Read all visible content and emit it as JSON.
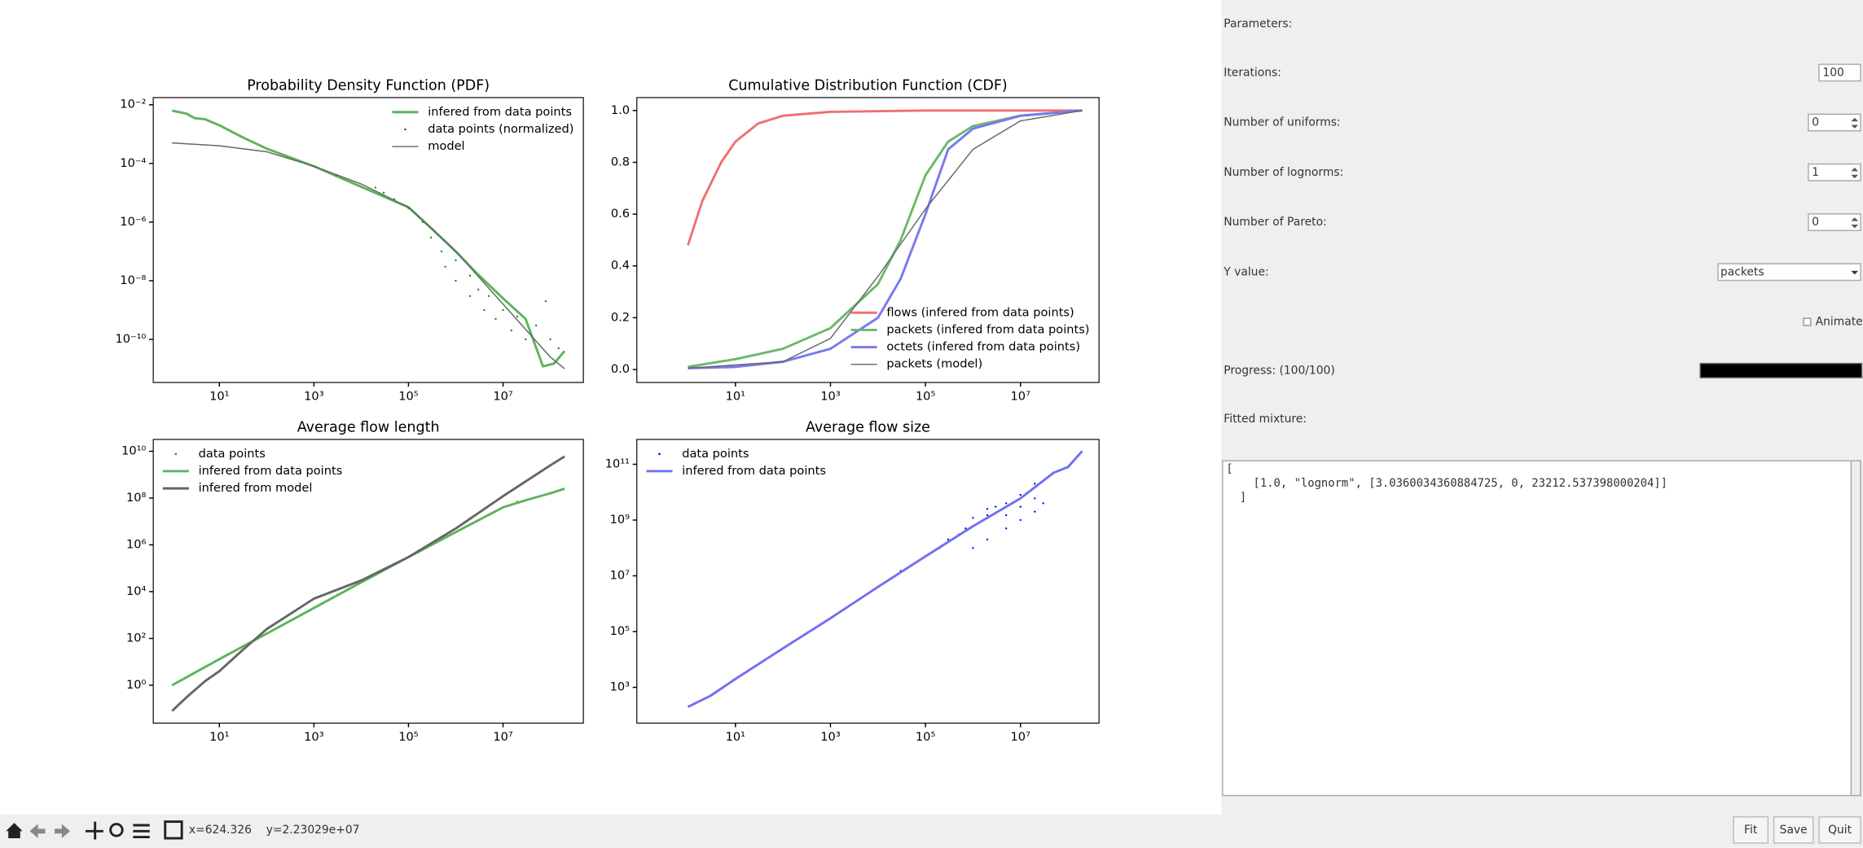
{
  "chart_data": [
    {
      "type": "line",
      "title": "Probability Density Function (PDF)",
      "xscale": "log",
      "yscale": "log",
      "xlim": [
        0.4,
        500000000
      ],
      "ylim": [
        3.4e-12,
        0.0176
      ],
      "xticks": [
        {
          "value": 10,
          "label": "10¹"
        },
        {
          "value": 1000,
          "label": "10³"
        },
        {
          "value": 100000,
          "label": "10⁵"
        },
        {
          "value": 10000000,
          "label": "10⁷"
        }
      ],
      "yticks": [
        {
          "value": 1e-10,
          "label": "10⁻¹⁰"
        },
        {
          "value": 1e-08,
          "label": "10⁻⁸"
        },
        {
          "value": 1e-06,
          "label": "10⁻⁶"
        },
        {
          "value": 0.0001,
          "label": "10⁻⁴"
        },
        {
          "value": 0.01,
          "label": "10⁻²"
        }
      ],
      "legend": "upper right",
      "series": [
        {
          "name": "infered from data points",
          "type": "line",
          "color": "#5cb45c",
          "linewidth": 2,
          "x": [
            1,
            2,
            3,
            5,
            10,
            30,
            100,
            1000,
            10000,
            100000,
            300000,
            1000000,
            3000000,
            10000000,
            30000000,
            70000000,
            120000000,
            200000000
          ],
          "values": [
            0.0063,
            0.005,
            0.0035,
            0.0032,
            0.002,
            0.0008,
            0.00032,
            8e-05,
            1.6e-05,
            3.2e-06,
            6.3e-07,
            1e-07,
            1.6e-08,
            2.5e-09,
            5e-10,
            1.2e-11,
            1.5e-11,
            4e-11
          ]
        },
        {
          "name": "data points (normalized)",
          "type": "scatter",
          "color": "#1a7a1a",
          "x": [
            1000,
            3000,
            20000,
            30000,
            50000,
            100000,
            200000,
            300000,
            500000,
            600000,
            1000000,
            1000000,
            2000000,
            2000000,
            3000000,
            4000000,
            5000000,
            7000000,
            10000000,
            15000000,
            20000000,
            30000000,
            50000000,
            80000000,
            100000000,
            150000000
          ],
          "values": [
            8e-05,
            4e-05,
            1.5e-05,
            1e-05,
            6e-06,
            3e-06,
            1e-06,
            3e-07,
            1e-07,
            3e-08,
            1e-08,
            5e-08,
            3e-09,
            1.5e-08,
            5e-09,
            1e-09,
            3e-09,
            5e-10,
            1e-09,
            2e-10,
            6e-10,
            1e-10,
            3e-10,
            2e-09,
            1e-10,
            5e-11
          ]
        },
        {
          "name": "model",
          "type": "line",
          "color": "#666666",
          "linewidth": 1,
          "x": [
            1,
            10,
            100,
            1000,
            10000,
            100000,
            1000000,
            10000000,
            100000000,
            200000000
          ],
          "values": [
            0.0005,
            0.0004,
            0.00025,
            8e-05,
            2e-05,
            3.2e-06,
            1e-07,
            1.6e-09,
            2.5e-11,
            1e-11
          ]
        }
      ]
    },
    {
      "type": "line",
      "title": "Cumulative Distribution Function (CDF)",
      "xscale": "log",
      "yscale": "linear",
      "xlim": [
        0.084,
        450000000
      ],
      "ylim": [
        -0.05,
        1.05
      ],
      "xticks": [
        {
          "value": 10,
          "label": "10¹"
        },
        {
          "value": 1000,
          "label": "10³"
        },
        {
          "value": 100000,
          "label": "10⁵"
        },
        {
          "value": 10000000,
          "label": "10⁷"
        }
      ],
      "yticks": [
        {
          "value": 0,
          "label": "0.0"
        },
        0.2,
        0.4,
        0.6,
        0.8,
        {
          "value": 1,
          "label": "1.0"
        }
      ],
      "legend": "lower right",
      "series": [
        {
          "name": "flows (infered from data points)",
          "type": "line",
          "color": "#f07070",
          "linewidth": 2,
          "x": [
            1,
            2,
            5,
            10,
            30,
            100,
            1000,
            100000,
            200000000
          ],
          "values": [
            0.48,
            0.65,
            0.8,
            0.88,
            0.95,
            0.98,
            0.995,
            1,
            1
          ]
        },
        {
          "name": "packets (infered from data points)",
          "type": "line",
          "color": "#6ab96a",
          "linewidth": 2,
          "x": [
            1,
            10,
            100,
            1000,
            10000,
            30000,
            100000,
            300000,
            1000000,
            10000000,
            200000000
          ],
          "values": [
            0.01,
            0.04,
            0.08,
            0.16,
            0.33,
            0.5,
            0.75,
            0.88,
            0.94,
            0.98,
            1
          ]
        },
        {
          "name": "octets (infered from data points)",
          "type": "line",
          "color": "#7878f0",
          "linewidth": 2,
          "x": [
            1,
            10,
            100,
            1000,
            10000,
            30000,
            100000,
            300000,
            1000000,
            10000000,
            200000000
          ],
          "values": [
            0.005,
            0.01,
            0.03,
            0.08,
            0.2,
            0.35,
            0.6,
            0.85,
            0.93,
            0.98,
            1
          ]
        },
        {
          "name": "packets (model)",
          "type": "line",
          "color": "#666666",
          "linewidth": 1,
          "x": [
            1,
            100,
            1000,
            10000,
            100000,
            1000000,
            10000000,
            200000000
          ],
          "values": [
            0.005,
            0.03,
            0.12,
            0.36,
            0.62,
            0.85,
            0.96,
            1
          ]
        }
      ]
    },
    {
      "type": "line",
      "title": "Average flow length",
      "xscale": "log",
      "yscale": "log",
      "xlim": [
        0.4,
        500000000
      ],
      "ylim": [
        0.024,
        32000000000
      ],
      "xticks": [
        {
          "value": 10,
          "label": "10¹"
        },
        {
          "value": 1000,
          "label": "10³"
        },
        {
          "value": 100000,
          "label": "10⁵"
        },
        {
          "value": 10000000,
          "label": "10⁷"
        }
      ],
      "yticks": [
        {
          "value": 1,
          "label": "10⁰"
        },
        {
          "value": 100,
          "label": "10²"
        },
        {
          "value": 10000,
          "label": "10⁴"
        },
        {
          "value": 1000000,
          "label": "10⁶"
        },
        {
          "value": 100000000,
          "label": "10⁸"
        },
        {
          "value": 10000000000,
          "label": "10¹⁰"
        }
      ],
      "legend": "upper left",
      "series": [
        {
          "name": "data points",
          "type": "scatter",
          "color": "#2e8b2e",
          "x": [
            1000000,
            5000000,
            20000000
          ],
          "values": [
            3500000,
            20000000,
            70000000
          ]
        },
        {
          "name": "infered from data points",
          "type": "line",
          "color": "#5cb45c",
          "linewidth": 2,
          "x": [
            1,
            10,
            100,
            1000,
            10000,
            100000,
            1000000,
            10000000,
            30000000,
            100000000,
            200000000
          ],
          "values": [
            1,
            13,
            160,
            2000,
            25000,
            300000,
            3500000,
            40000000,
            80000000,
            160000000,
            250000000
          ]
        },
        {
          "name": "infered from model",
          "type": "line",
          "color": "#666666",
          "linewidth": 2,
          "x": [
            1,
            2,
            5,
            10,
            30,
            100,
            1000,
            10000,
            100000,
            1000000,
            10000000,
            100000000,
            200000000
          ],
          "values": [
            0.08,
            0.3,
            1.5,
            4,
            30,
            250,
            5000,
            30000,
            300000,
            5000000,
            120000000,
            2500000000,
            6000000000
          ]
        }
      ]
    },
    {
      "type": "line",
      "title": "Average flow size",
      "xscale": "log",
      "yscale": "log",
      "xlim": [
        0.084,
        450000000
      ],
      "ylim": [
        52,
        780000000000
      ],
      "xticks": [
        {
          "value": 10,
          "label": "10¹"
        },
        {
          "value": 1000,
          "label": "10³"
        },
        {
          "value": 100000,
          "label": "10⁵"
        },
        {
          "value": 10000000,
          "label": "10⁷"
        }
      ],
      "yticks": [
        {
          "value": 1000,
          "label": "10³"
        },
        {
          "value": 100000,
          "label": "10⁵"
        },
        {
          "value": 10000000,
          "label": "10⁷"
        },
        {
          "value": 1000000000,
          "label": "10⁹"
        },
        {
          "value": 100000000000,
          "label": "10¹¹"
        }
      ],
      "legend": "upper left",
      "series": [
        {
          "name": "data points",
          "type": "scatter",
          "color": "#0000ee",
          "x": [
            10000,
            30000,
            100000,
            200000,
            300000,
            500000,
            700000,
            1000000,
            1000000,
            2000000,
            2000000,
            3000000,
            5000000,
            10000000,
            20000000,
            50000000,
            1000000,
            2000000,
            5000000,
            10000000,
            20000000,
            30000000,
            5000000,
            10000000,
            20000000
          ],
          "values": [
            4000000,
            15000000,
            50000000,
            100000000,
            200000000,
            300000000,
            500000000,
            600000000,
            1200000000,
            1500000000,
            2500000000,
            3000000000,
            4000000000,
            8000000000,
            20000000000,
            50000000000,
            100000000,
            200000000,
            500000000,
            1000000000,
            2000000000,
            4000000000,
            1500000000,
            3000000000,
            6000000000
          ]
        },
        {
          "name": "infered from data points",
          "type": "line",
          "color": "#7070f0",
          "linewidth": 2,
          "x": [
            1,
            3,
            10,
            100,
            1000,
            10000,
            100000,
            1000000,
            10000000,
            50000000,
            100000000,
            200000000
          ],
          "values": [
            200,
            500,
            2000,
            25000,
            300000,
            4000000,
            50000000,
            600000000,
            6000000000,
            50000000000,
            80000000000,
            300000000000
          ]
        }
      ]
    }
  ],
  "panel": {
    "parameters": "Parameters:",
    "iterations_label": "Iterations:",
    "iterations": "100",
    "uniforms_label": "Number of uniforms:",
    "uniforms": "0",
    "lognorms_label": "Number of lognorms:",
    "lognorms": "1",
    "pareto_label": "Number of Pareto:",
    "pareto": "0",
    "y_value_label": "Y value:",
    "y_value": "packets",
    "animate": "Animate",
    "progress": "Progress: (100/100)",
    "fitted_label": "Fitted mixture:",
    "fitted_lines": [
      "[",
      "    [1.0, \"lognorm\", [3.0360034360884725, 0, 23212.537398000204]]",
      "  ]"
    ],
    "buttons": [
      "Fit",
      "Save",
      "Quit"
    ]
  },
  "toolbar": {
    "x": "x=624.326",
    "y": "y=2.23029e+07"
  }
}
